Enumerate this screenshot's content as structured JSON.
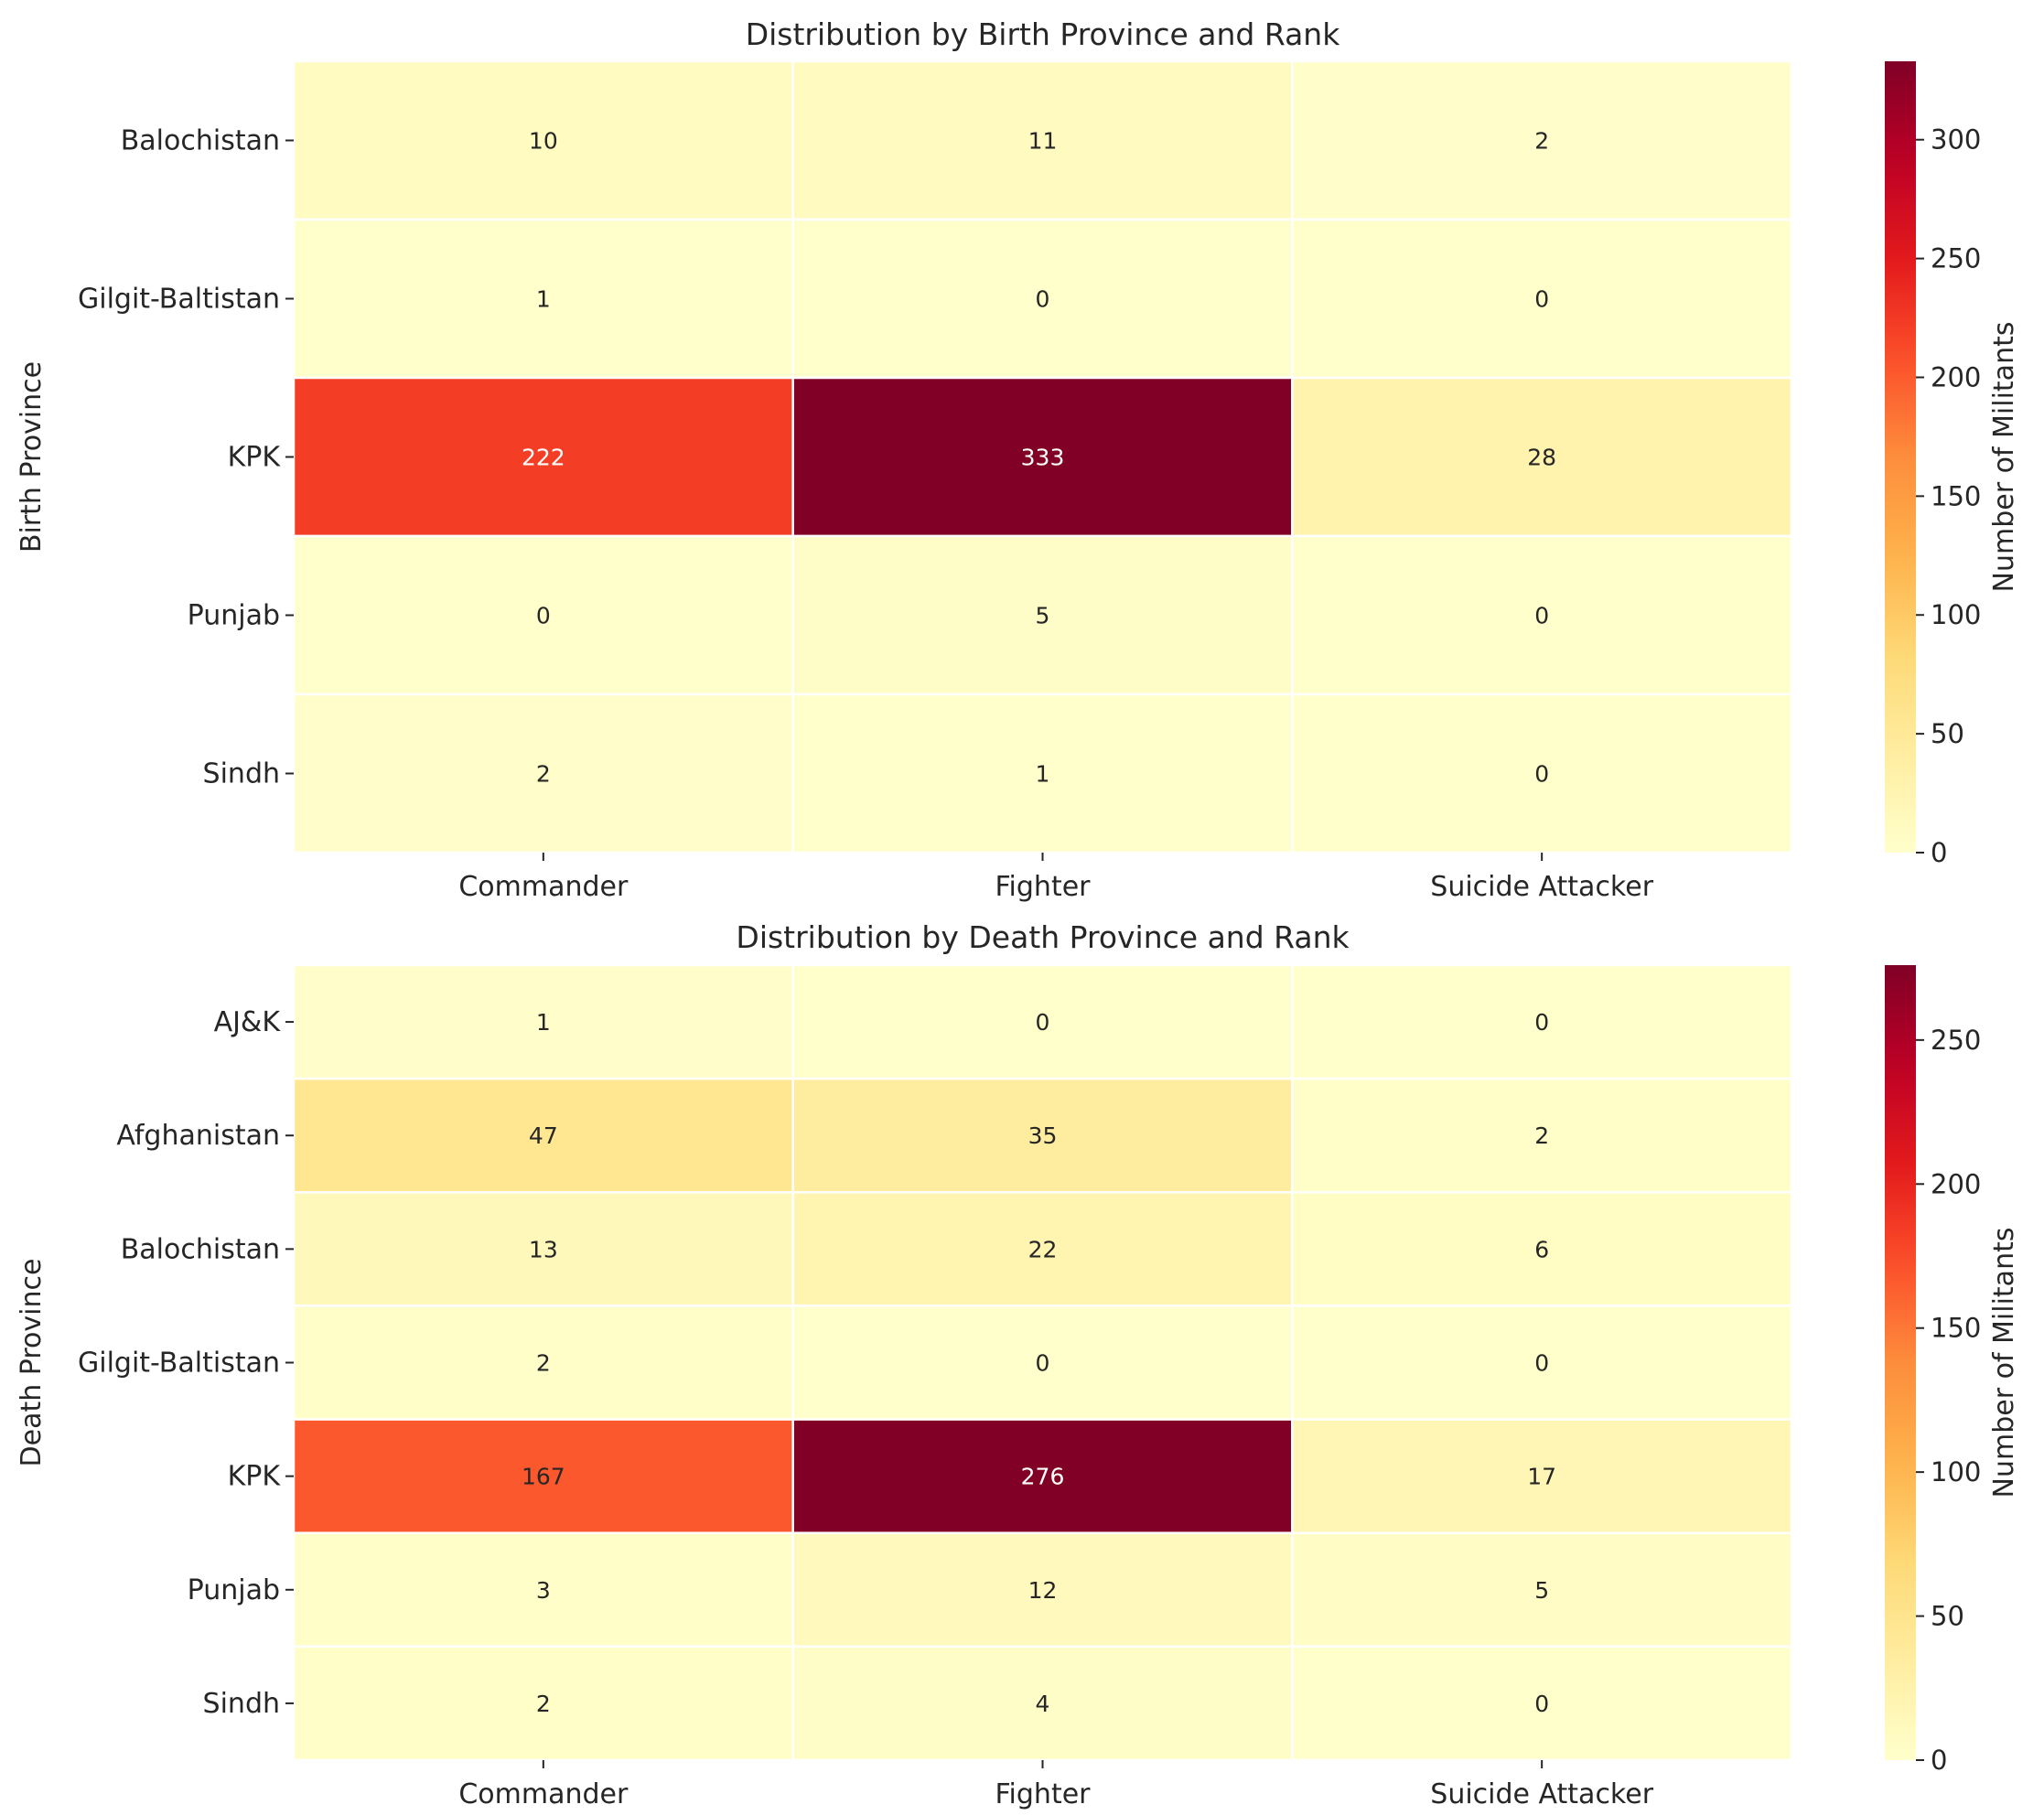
{
  "chart_data": [
    {
      "type": "heatmap",
      "title": "Distribution by Birth Province and Rank",
      "xlabel": "",
      "ylabel": "Birth Province",
      "colorbar_label": "Number of Militants",
      "colormap": "YlOrRd",
      "x_categories": [
        "Commander",
        "Fighter",
        "Suicide Attacker"
      ],
      "y_categories": [
        "Balochistan",
        "Gilgit-Baltistan",
        "KPK",
        "Punjab",
        "Sindh"
      ],
      "values": [
        [
          10,
          11,
          2
        ],
        [
          1,
          0,
          0
        ],
        [
          222,
          333,
          28
        ],
        [
          0,
          5,
          0
        ],
        [
          2,
          1,
          0
        ]
      ],
      "vmin": 0,
      "vmax": 333,
      "colorbar_ticks": [
        0,
        50,
        100,
        150,
        200,
        250,
        300
      ],
      "annotated": true
    },
    {
      "type": "heatmap",
      "title": "Distribution by Death Province and Rank",
      "xlabel": "",
      "ylabel": "Death Province",
      "colorbar_label": "Number of Militants",
      "colormap": "YlOrRd",
      "x_categories": [
        "Commander",
        "Fighter",
        "Suicide Attacker"
      ],
      "y_categories": [
        "AJ&K",
        "Afghanistan",
        "Balochistan",
        "Gilgit-Baltistan",
        "KPK",
        "Punjab",
        "Sindh"
      ],
      "values": [
        [
          1,
          0,
          0
        ],
        [
          47,
          35,
          2
        ],
        [
          13,
          22,
          6
        ],
        [
          2,
          0,
          0
        ],
        [
          167,
          276,
          17
        ],
        [
          3,
          12,
          5
        ],
        [
          2,
          4,
          0
        ]
      ],
      "vmin": 0,
      "vmax": 276,
      "colorbar_ticks": [
        0,
        50,
        100,
        150,
        200,
        250
      ],
      "annotated": true
    }
  ]
}
